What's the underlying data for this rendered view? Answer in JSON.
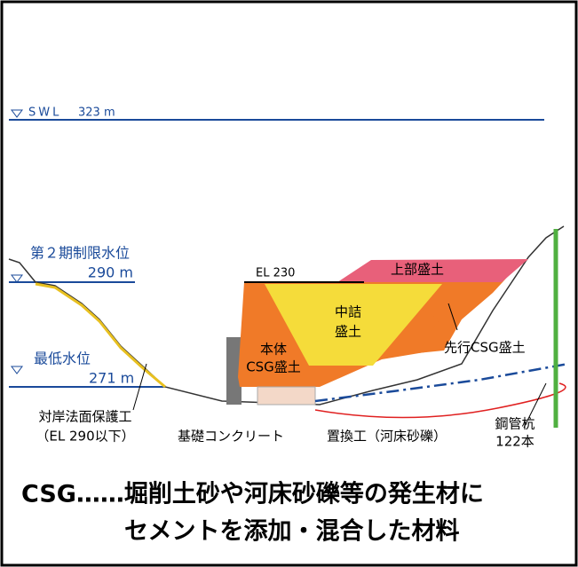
{
  "labels": {
    "swl": "SWL",
    "swl_el": "323 m",
    "limit": "第２期制限水位",
    "limit_el": "290 m",
    "min": "最低水位",
    "min_el": "271 m",
    "el_top": "EL 230",
    "upper": "上部盛土",
    "core": [
      "中詰",
      "盛土"
    ],
    "body": [
      "本体",
      "CSG盛土"
    ],
    "leading": "先行CSG盛土",
    "protection": [
      "対岸法面保護工",
      "（EL 290以下）"
    ],
    "foundation": "基礎コンクリート",
    "replacement": "置換工（河床砂礫）",
    "piles": [
      "鋼管杭",
      "122本"
    ]
  },
  "caption": [
    "CSG……堀削土砂や河床砂礫等の発生材に",
    "セメントを添加・混合した材料"
  ]
}
